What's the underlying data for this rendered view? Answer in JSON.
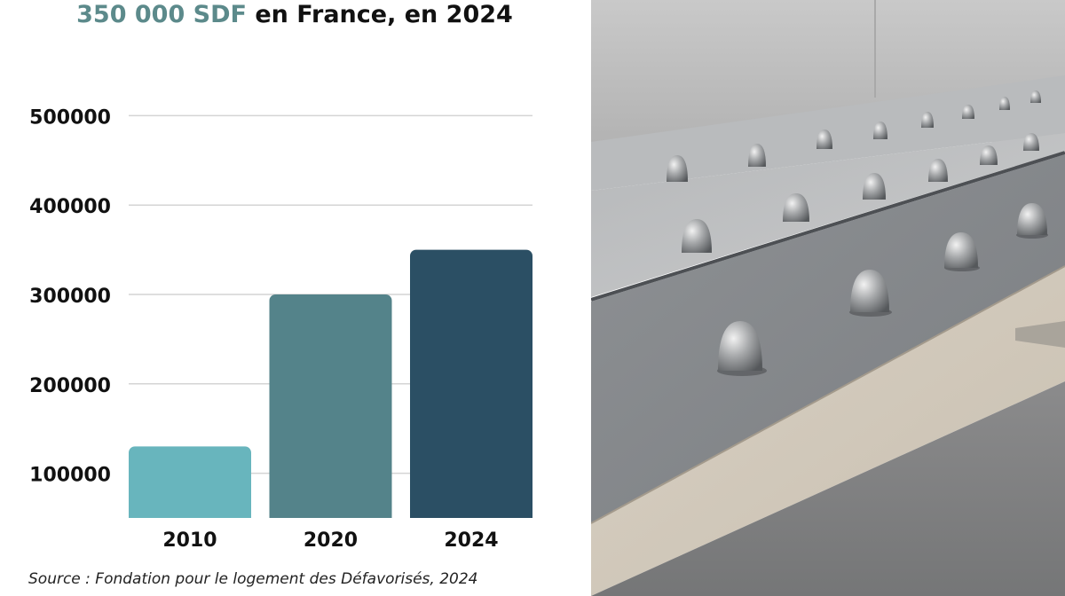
{
  "title": {
    "highlight": "350 000 SDF",
    "rest": " en France, en 2024",
    "highlight_color": "#5c8a8b"
  },
  "source": "Source : Fondation pour le logement des Défavorisés, 2024",
  "photo": {
    "subject": "stainless steel anti-homeless spikes on a granite ledge"
  },
  "chart_data": {
    "type": "bar",
    "categories": [
      "2010",
      "2020",
      "2024"
    ],
    "values": [
      130000,
      300000,
      350000
    ],
    "bar_colors": [
      "#68b5bd",
      "#54838a",
      "#2b4f64"
    ],
    "yticks": [
      100000,
      200000,
      300000,
      400000,
      500000
    ],
    "ytick_labels": [
      "100000",
      "200000",
      "300000",
      "400000",
      "500000"
    ],
    "ylim": [
      50000,
      550000
    ],
    "grid": true,
    "legend": "none"
  }
}
